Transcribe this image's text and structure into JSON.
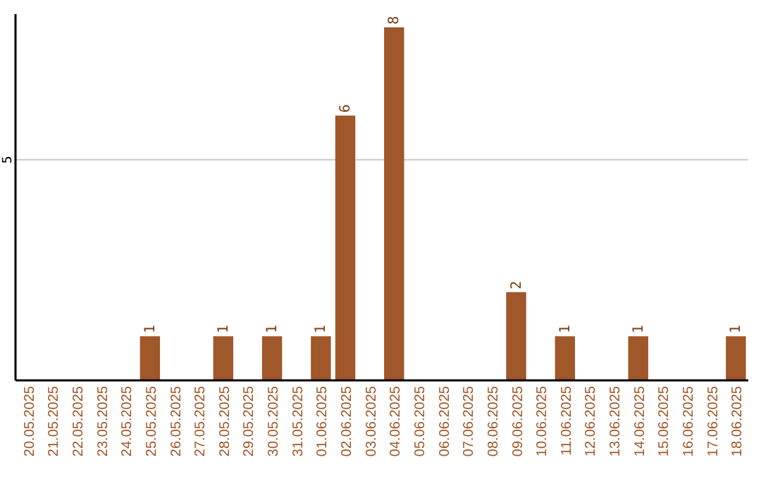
{
  "chart_data": {
    "type": "bar",
    "categories": [
      "20.05.2025",
      "21.05.2025",
      "22.05.2025",
      "23.05.2025",
      "24.05.2025",
      "25.05.2025",
      "26.05.2025",
      "27.05.2025",
      "28.05.2025",
      "29.05.2025",
      "30.05.2025",
      "31.05.2025",
      "01.06.2025",
      "02.06.2025",
      "03.06.2025",
      "04.06.2025",
      "05.06.2025",
      "06.06.2025",
      "07.06.2025",
      "08.06.2025",
      "09.06.2025",
      "10.06.2025",
      "11.06.2025",
      "12.06.2025",
      "13.06.2025",
      "14.06.2025",
      "15.06.2025",
      "16.06.2025",
      "17.06.2025",
      "18.06.2025"
    ],
    "values": [
      0,
      0,
      0,
      0,
      0,
      1,
      0,
      0,
      1,
      0,
      1,
      0,
      1,
      6,
      0,
      8,
      0,
      0,
      0,
      0,
      2,
      0,
      1,
      0,
      0,
      1,
      0,
      0,
      0,
      1
    ],
    "value_labels": [
      null,
      null,
      null,
      null,
      null,
      "1",
      null,
      null,
      "1",
      null,
      "1",
      null,
      "1",
      "6",
      null,
      "8",
      null,
      null,
      null,
      null,
      "2",
      null,
      "1",
      null,
      null,
      "1",
      null,
      null,
      null,
      "1"
    ],
    "color": "#a0572a",
    "ylim": [
      0,
      8.3
    ],
    "yticks": [
      5
    ],
    "grid": "y"
  }
}
